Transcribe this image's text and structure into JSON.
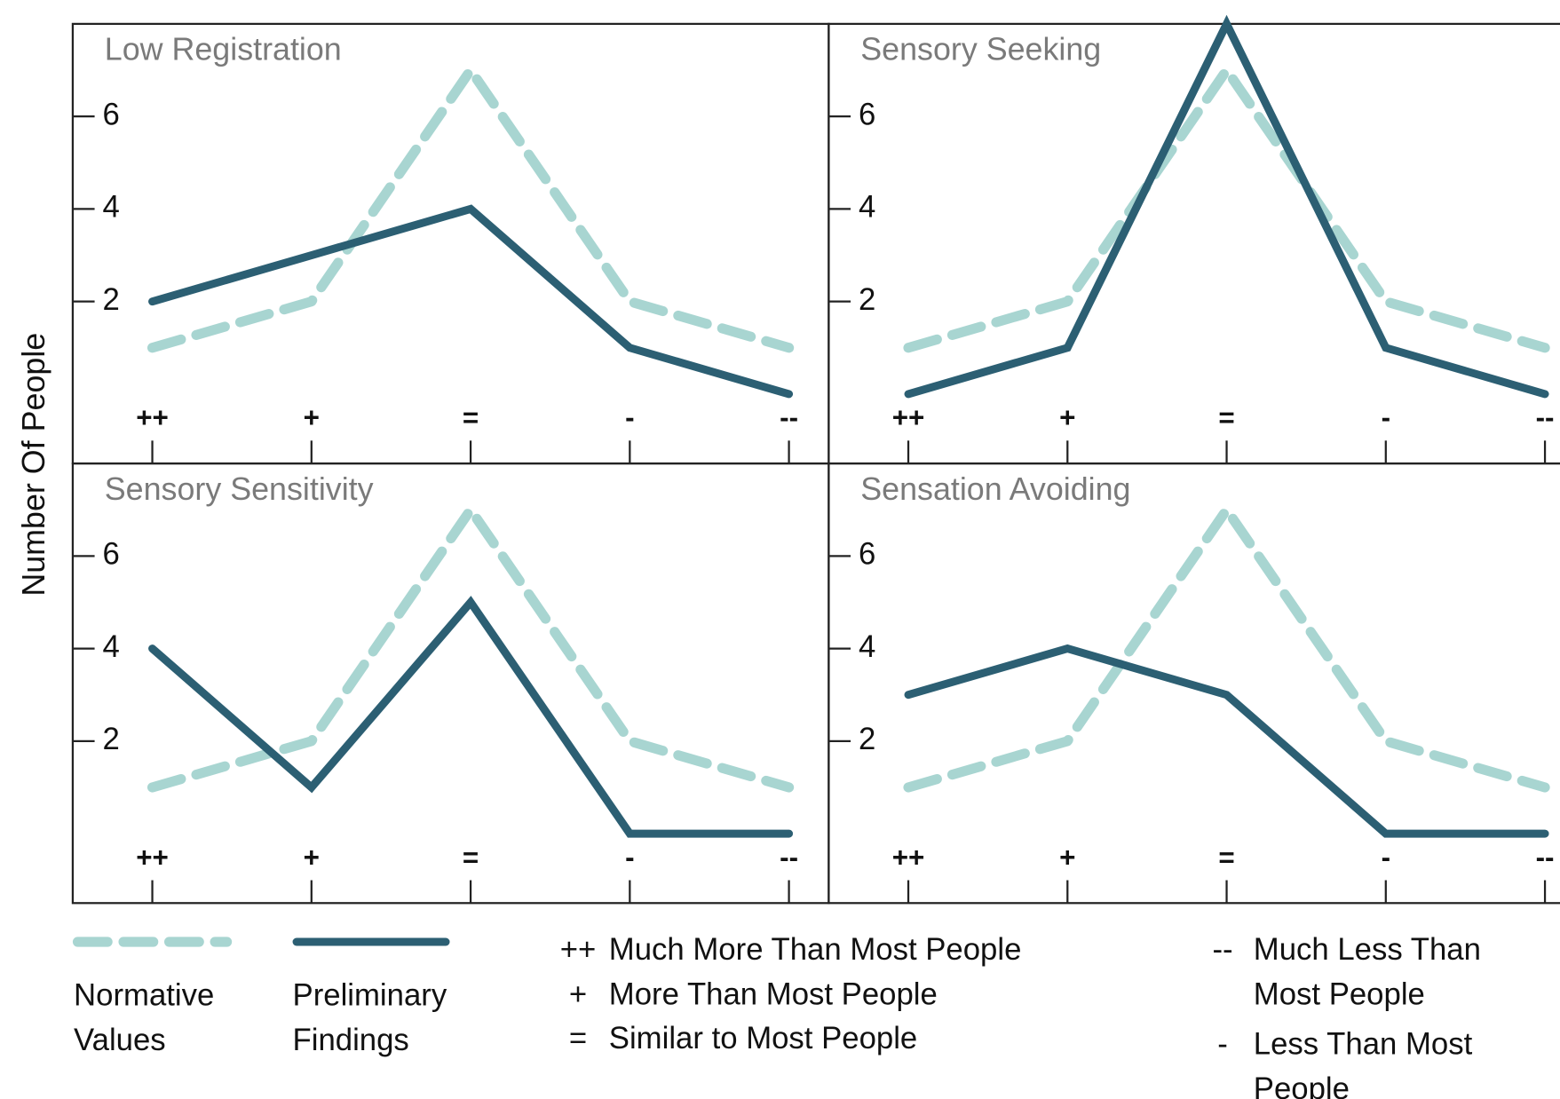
{
  "chart_data": [
    {
      "type": "line",
      "title": "Low Registration",
      "ylabel": "Number Of People",
      "categories": [
        "++",
        "+",
        "=",
        "-",
        "--"
      ],
      "series": [
        {
          "name": "Normative Values",
          "color": "#a8d5d1",
          "style": "dashed",
          "values": [
            1,
            2,
            7,
            2,
            1
          ]
        },
        {
          "name": "Preliminary Findings",
          "color": "#2c5f73",
          "style": "solid",
          "values": [
            2,
            3,
            4,
            1,
            0
          ]
        }
      ],
      "ylim": [
        -1.5,
        8
      ],
      "yticks": [
        2,
        4,
        6
      ]
    },
    {
      "type": "line",
      "title": "Sensory Seeking",
      "categories": [
        "++",
        "+",
        "=",
        "-",
        "--"
      ],
      "series": [
        {
          "name": "Normative Values",
          "color": "#a8d5d1",
          "style": "dashed",
          "values": [
            1,
            2,
            7,
            2,
            1
          ]
        },
        {
          "name": "Preliminary Findings",
          "color": "#2c5f73",
          "style": "solid",
          "values": [
            0,
            1,
            8,
            1,
            0
          ]
        }
      ],
      "ylim": [
        -1.5,
        8
      ],
      "yticks": [
        2,
        4,
        6
      ]
    },
    {
      "type": "line",
      "title": "Sensory Sensitivity",
      "categories": [
        "++",
        "+",
        "=",
        "-",
        "--"
      ],
      "series": [
        {
          "name": "Normative Values",
          "color": "#a8d5d1",
          "style": "dashed",
          "values": [
            1,
            2,
            7,
            2,
            1
          ]
        },
        {
          "name": "Preliminary Findings",
          "color": "#2c5f73",
          "style": "solid",
          "values": [
            4,
            1,
            5,
            0,
            0
          ]
        }
      ],
      "ylim": [
        -1.5,
        8
      ],
      "yticks": [
        2,
        4,
        6
      ]
    },
    {
      "type": "line",
      "title": "Sensation Avoiding",
      "categories": [
        "++",
        "+",
        "=",
        "-",
        "--"
      ],
      "series": [
        {
          "name": "Normative Values",
          "color": "#a8d5d1",
          "style": "dashed",
          "values": [
            1,
            2,
            7,
            2,
            1
          ]
        },
        {
          "name": "Preliminary Findings",
          "color": "#2c5f73",
          "style": "solid",
          "values": [
            3,
            4,
            3,
            0,
            0
          ]
        }
      ],
      "ylim": [
        -1.5,
        8
      ],
      "yticks": [
        2,
        4,
        6
      ]
    }
  ],
  "legend_key": [
    {
      "symbol": "++",
      "text": "Much More Than Most People"
    },
    {
      "symbol": "+",
      "text": "More Than Most People"
    },
    {
      "symbol": "=",
      "text": "Similar to Most People"
    },
    {
      "symbol": "--",
      "text": "Much Less Than Most People"
    },
    {
      "symbol": "-",
      "text": "Less Than Most People"
    }
  ]
}
